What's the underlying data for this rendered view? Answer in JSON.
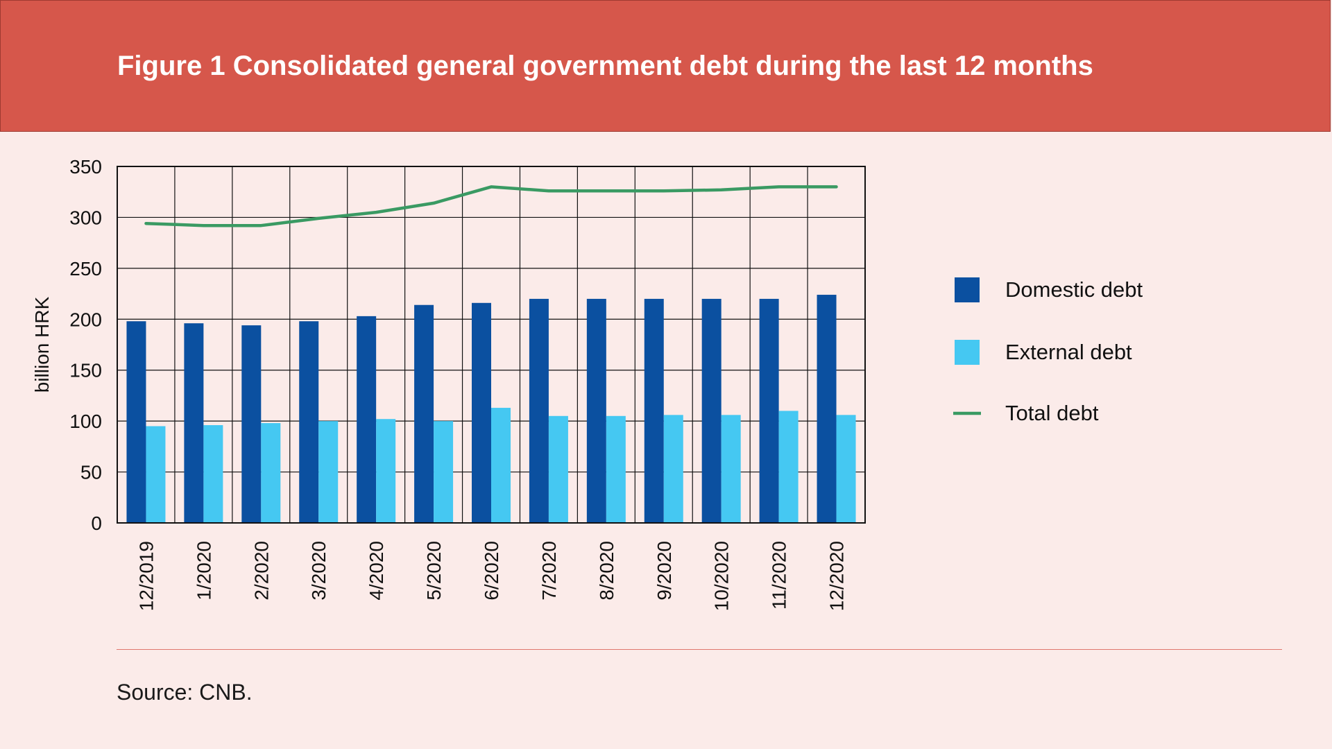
{
  "header": {
    "title": "Figure 1 Consolidated general government debt during the last 12 months"
  },
  "footer": {
    "source": "Source: CNB."
  },
  "chart_data": {
    "type": "bar",
    "title": "Figure 1 Consolidated general government debt during the last 12 months",
    "xlabel": "",
    "ylabel": "billion HRK",
    "ylim": [
      0,
      350
    ],
    "yticks": [
      0,
      50,
      100,
      150,
      200,
      250,
      300,
      350
    ],
    "grid": true,
    "legend_position": "right",
    "categories": [
      "12/2019",
      "1/2020",
      "2/2020",
      "3/2020",
      "4/2020",
      "5/2020",
      "6/2020",
      "7/2020",
      "8/2020",
      "9/2020",
      "10/2020",
      "11/2020",
      "12/2020"
    ],
    "series": [
      {
        "name": "Domestic debt",
        "type": "bar",
        "color": "#0b50a0",
        "values": [
          198,
          196,
          194,
          198,
          203,
          214,
          216,
          220,
          220,
          220,
          220,
          220,
          224
        ]
      },
      {
        "name": "External debt",
        "type": "bar",
        "color": "#45c8f2",
        "values": [
          95,
          96,
          98,
          100,
          102,
          100,
          113,
          105,
          105,
          106,
          106,
          110,
          106
        ]
      },
      {
        "name": "Total debt",
        "type": "line",
        "color": "#3a9a63",
        "values": [
          294,
          292,
          292,
          299,
          305,
          314,
          330,
          326,
          326,
          326,
          327,
          330,
          330
        ]
      }
    ]
  }
}
